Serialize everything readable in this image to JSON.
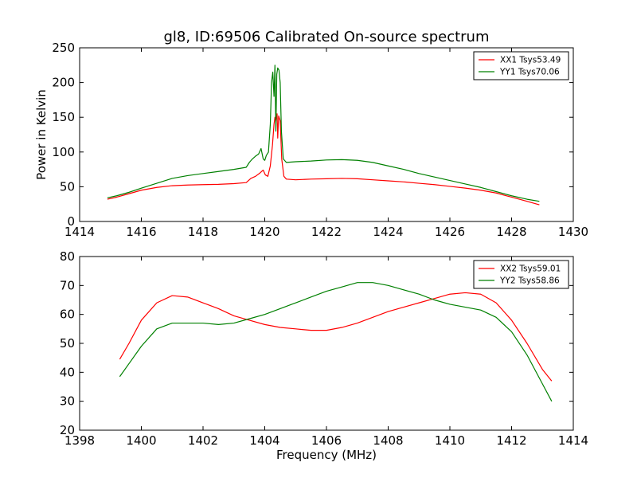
{
  "chart_data": [
    {
      "type": "line",
      "title": "gl8, ID:69506 Calibrated On-source spectrum",
      "xlabel": "",
      "ylabel": "Power in Kelvin",
      "xlim": [
        1414,
        1430
      ],
      "ylim": [
        0,
        250
      ],
      "xticks": [
        1414,
        1416,
        1418,
        1420,
        1422,
        1424,
        1426,
        1428,
        1430
      ],
      "yticks": [
        0,
        50,
        100,
        150,
        200,
        250
      ],
      "grid": false,
      "legend": "top-right",
      "series": [
        {
          "name": "XX1 Tsys53.49",
          "color": "#ff0000",
          "points": [
            [
              1414.9,
              32
            ],
            [
              1415.2,
              35
            ],
            [
              1415.6,
              40
            ],
            [
              1416.0,
              45
            ],
            [
              1416.5,
              49
            ],
            [
              1417.0,
              51.5
            ],
            [
              1417.5,
              52.5
            ],
            [
              1418.0,
              53
            ],
            [
              1418.5,
              53.5
            ],
            [
              1419.0,
              54.5
            ],
            [
              1419.4,
              56
            ],
            [
              1419.55,
              62
            ],
            [
              1419.7,
              65
            ],
            [
              1419.85,
              70
            ],
            [
              1419.95,
              74
            ],
            [
              1420.02,
              67
            ],
            [
              1420.1,
              65
            ],
            [
              1420.18,
              80
            ],
            [
              1420.25,
              110
            ],
            [
              1420.3,
              140
            ],
            [
              1420.33,
              150
            ],
            [
              1420.36,
              145
            ],
            [
              1420.4,
              155
            ],
            [
              1420.42,
              120
            ],
            [
              1420.45,
              152
            ],
            [
              1420.5,
              145
            ],
            [
              1420.55,
              90
            ],
            [
              1420.62,
              65
            ],
            [
              1420.7,
              61
            ],
            [
              1421.0,
              60
            ],
            [
              1421.5,
              61
            ],
            [
              1422.0,
              61.5
            ],
            [
              1422.5,
              62
            ],
            [
              1423.0,
              61.5
            ],
            [
              1423.5,
              60
            ],
            [
              1424.0,
              58.5
            ],
            [
              1424.5,
              57
            ],
            [
              1425.0,
              55
            ],
            [
              1425.5,
              53
            ],
            [
              1426.0,
              50.5
            ],
            [
              1426.5,
              48
            ],
            [
              1427.0,
              45
            ],
            [
              1427.5,
              41
            ],
            [
              1428.0,
              35
            ],
            [
              1428.5,
              29
            ],
            [
              1428.9,
              24
            ]
          ]
        },
        {
          "name": "YY1 Tsys70.06",
          "color": "#008000",
          "points": [
            [
              1414.9,
              34
            ],
            [
              1415.2,
              37
            ],
            [
              1415.6,
              42
            ],
            [
              1416.0,
              48
            ],
            [
              1416.5,
              55
            ],
            [
              1417.0,
              62
            ],
            [
              1417.5,
              66
            ],
            [
              1418.0,
              69
            ],
            [
              1418.5,
              72
            ],
            [
              1419.0,
              75
            ],
            [
              1419.4,
              78
            ],
            [
              1419.5,
              85
            ],
            [
              1419.6,
              90
            ],
            [
              1419.7,
              94
            ],
            [
              1419.8,
              97
            ],
            [
              1419.88,
              105
            ],
            [
              1419.95,
              90
            ],
            [
              1420.0,
              88
            ],
            [
              1420.05,
              95
            ],
            [
              1420.12,
              100
            ],
            [
              1420.18,
              140
            ],
            [
              1420.22,
              200
            ],
            [
              1420.26,
              215
            ],
            [
              1420.3,
              180
            ],
            [
              1420.33,
              225
            ],
            [
              1420.36,
              130
            ],
            [
              1420.39,
              212
            ],
            [
              1420.42,
              221
            ],
            [
              1420.46,
              218
            ],
            [
              1420.5,
              200
            ],
            [
              1420.54,
              130
            ],
            [
              1420.6,
              90
            ],
            [
              1420.7,
              85
            ],
            [
              1421.0,
              86
            ],
            [
              1421.5,
              87
            ],
            [
              1422.0,
              88.5
            ],
            [
              1422.5,
              89
            ],
            [
              1423.0,
              88
            ],
            [
              1423.5,
              85
            ],
            [
              1424.0,
              80
            ],
            [
              1424.5,
              75
            ],
            [
              1425.0,
              69
            ],
            [
              1425.5,
              64
            ],
            [
              1426.0,
              59
            ],
            [
              1426.5,
              54
            ],
            [
              1427.0,
              49
            ],
            [
              1427.5,
              43
            ],
            [
              1428.0,
              37
            ],
            [
              1428.5,
              32
            ],
            [
              1428.9,
              29
            ]
          ]
        }
      ]
    },
    {
      "type": "line",
      "title": "",
      "xlabel": "Frequency (MHz)",
      "ylabel": "",
      "xlim": [
        1398,
        1414
      ],
      "ylim": [
        20,
        80
      ],
      "xticks": [
        1398,
        1400,
        1402,
        1404,
        1406,
        1408,
        1410,
        1412,
        1414
      ],
      "yticks": [
        20,
        30,
        40,
        50,
        60,
        70,
        80
      ],
      "grid": false,
      "legend": "top-right",
      "series": [
        {
          "name": "XX2 Tsys59.01",
          "color": "#ff0000",
          "points": [
            [
              1399.3,
              44.5
            ],
            [
              1399.6,
              50
            ],
            [
              1400.0,
              58
            ],
            [
              1400.5,
              64
            ],
            [
              1401.0,
              66.5
            ],
            [
              1401.5,
              66
            ],
            [
              1402.0,
              64
            ],
            [
              1402.5,
              62
            ],
            [
              1403.0,
              59.5
            ],
            [
              1403.5,
              58
            ],
            [
              1404.0,
              56.5
            ],
            [
              1404.5,
              55.5
            ],
            [
              1405.0,
              55
            ],
            [
              1405.5,
              54.5
            ],
            [
              1406.0,
              54.5
            ],
            [
              1406.5,
              55.5
            ],
            [
              1407.0,
              57
            ],
            [
              1407.5,
              59
            ],
            [
              1408.0,
              61
            ],
            [
              1408.5,
              62.5
            ],
            [
              1409.0,
              64
            ],
            [
              1409.5,
              65.5
            ],
            [
              1410.0,
              67
            ],
            [
              1410.5,
              67.5
            ],
            [
              1411.0,
              67
            ],
            [
              1411.5,
              64
            ],
            [
              1412.0,
              58
            ],
            [
              1412.5,
              50
            ],
            [
              1413.0,
              41
            ],
            [
              1413.3,
              37
            ]
          ]
        },
        {
          "name": "YY2 Tsys58.86",
          "color": "#008000",
          "points": [
            [
              1399.3,
              38.5
            ],
            [
              1399.6,
              43
            ],
            [
              1400.0,
              49
            ],
            [
              1400.5,
              55
            ],
            [
              1401.0,
              57
            ],
            [
              1401.5,
              57
            ],
            [
              1402.0,
              57
            ],
            [
              1402.5,
              56.5
            ],
            [
              1403.0,
              57
            ],
            [
              1403.5,
              58.5
            ],
            [
              1404.0,
              60
            ],
            [
              1404.5,
              62
            ],
            [
              1405.0,
              64
            ],
            [
              1405.5,
              66
            ],
            [
              1406.0,
              68
            ],
            [
              1406.5,
              69.5
            ],
            [
              1407.0,
              71
            ],
            [
              1407.5,
              71
            ],
            [
              1408.0,
              70
            ],
            [
              1408.5,
              68.5
            ],
            [
              1409.0,
              67
            ],
            [
              1409.5,
              65
            ],
            [
              1410.0,
              63.5
            ],
            [
              1410.5,
              62.5
            ],
            [
              1411.0,
              61.5
            ],
            [
              1411.5,
              59
            ],
            [
              1412.0,
              54
            ],
            [
              1412.5,
              46
            ],
            [
              1413.0,
              36
            ],
            [
              1413.3,
              30
            ]
          ]
        }
      ]
    }
  ]
}
